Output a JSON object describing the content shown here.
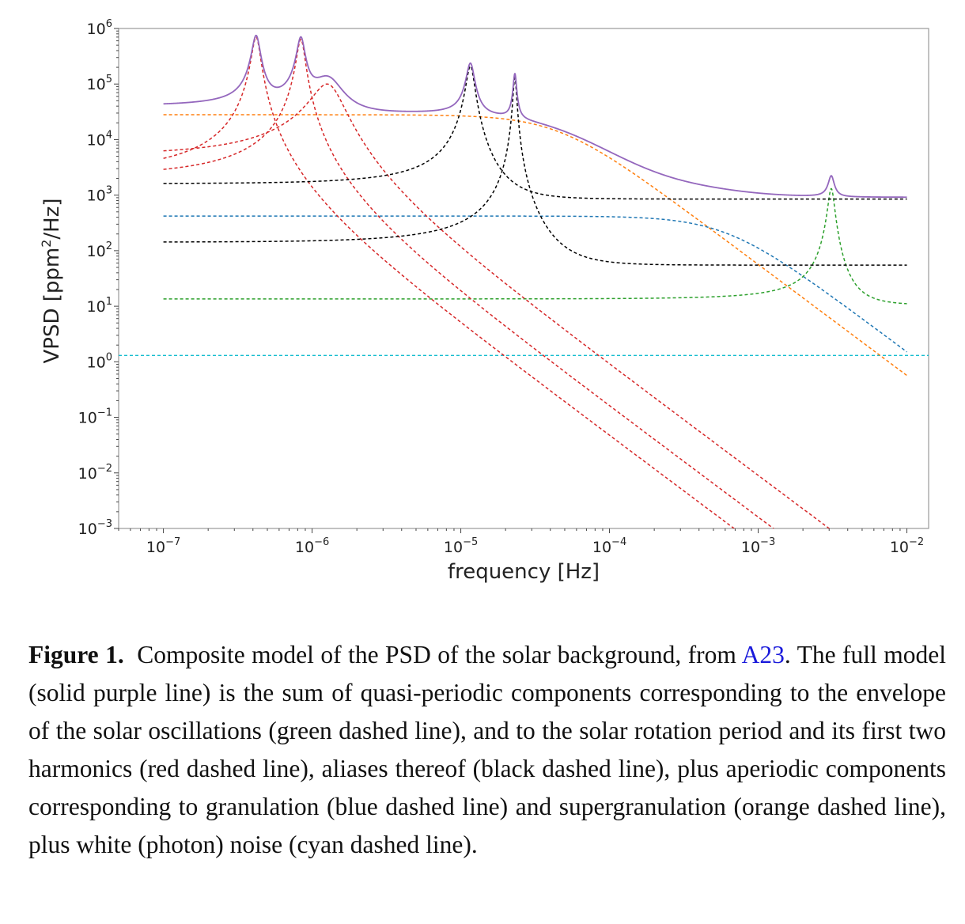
{
  "chart_data": {
    "type": "line",
    "xscale": "log",
    "yscale": "log",
    "xlabel": "frequency [Hz]",
    "ylabel_base": "VPSD [ppm",
    "ylabel_sup": "2",
    "ylabel_tail": "/Hz]",
    "xlim": [
      5e-08,
      0.014
    ],
    "ylim": [
      0.001,
      1000000.0
    ],
    "xticks": [
      {
        "value": 1e-07,
        "base": "10",
        "exp": "−7"
      },
      {
        "value": 1e-06,
        "base": "10",
        "exp": "−6"
      },
      {
        "value": 1e-05,
        "base": "10",
        "exp": "−5"
      },
      {
        "value": 0.0001,
        "base": "10",
        "exp": "−4"
      },
      {
        "value": 0.001,
        "base": "10",
        "exp": "−3"
      },
      {
        "value": 0.01,
        "base": "10",
        "exp": "−2"
      }
    ],
    "yticks": [
      {
        "value": 1000000.0,
        "base": "10",
        "exp": "6"
      },
      {
        "value": 100000.0,
        "base": "10",
        "exp": "5"
      },
      {
        "value": 10000.0,
        "base": "10",
        "exp": "4"
      },
      {
        "value": 1000.0,
        "base": "10",
        "exp": "3"
      },
      {
        "value": 100.0,
        "base": "10",
        "exp": "2"
      },
      {
        "value": 10.0,
        "base": "10",
        "exp": "1"
      },
      {
        "value": 1.0,
        "base": "10",
        "exp": "0"
      },
      {
        "value": 0.1,
        "base": "10",
        "exp": "−1"
      },
      {
        "value": 0.01,
        "base": "10",
        "exp": "−2"
      },
      {
        "value": 0.001,
        "base": "10",
        "exp": "−3"
      }
    ],
    "x_range": [
      1e-07,
      0.01
    ],
    "grid": false,
    "legend": "none",
    "components": [
      {
        "kind": "constant",
        "color": "#17becf",
        "dashed": true,
        "level": 1.3,
        "full_width": true
      },
      {
        "kind": "harvey",
        "color": "#ff7f0e",
        "dashed": true,
        "amplitude": 28000,
        "knee": 4.5e-05,
        "exponent": 2
      },
      {
        "kind": "harvey",
        "color": "#1f77b4",
        "dashed": true,
        "amplitude": 420,
        "knee": 0.0006,
        "exponent": 2
      },
      {
        "kind": "lorentz",
        "color": "#2ca02c",
        "dashed": true,
        "offset": 10.5,
        "height": 1300,
        "center": 0.0031,
        "width": 0.00015
      },
      {
        "kind": "lorentz",
        "color": "#d62728",
        "dashed": true,
        "height": 700000,
        "center": 4.2e-07,
        "width": 2.6e-08
      },
      {
        "kind": "lorentz",
        "color": "#d62728",
        "dashed": true,
        "height": 640000,
        "center": 8.4e-07,
        "width": 5e-08
      },
      {
        "kind": "lorentz",
        "color": "#d62728",
        "dashed": true,
        "height": 100000,
        "center": 1.26e-06,
        "width": 3e-07
      },
      {
        "kind": "lorentz",
        "color": "#000000",
        "dashed": true,
        "offset": 850,
        "height": 210000,
        "center": 1.16e-05,
        "width": 7e-07
      },
      {
        "kind": "lorentz",
        "color": "#000000",
        "dashed": true,
        "offset": 55,
        "height": 130000,
        "center": 2.31e-05,
        "width": 6e-07
      }
    ],
    "total": {
      "color": "#9467bd",
      "dashed": false,
      "label": "full model"
    }
  },
  "caption": {
    "label": "Figure 1.",
    "text_before_ref": "Composite model of the PSD of the solar background, from ",
    "ref": "A23",
    "text_after_ref": ". The full model (solid purple line) is the sum of quasi-periodic components corresponding to the envelope of the solar oscillations (green dashed line), and to the solar rotation period and its first two harmonics (red dashed line), aliases thereof (black dashed line), plus aperiodic components corresponding to granulation (blue dashed line) and supergranulation (orange dashed line), plus white (photon) noise (cyan dashed line)."
  }
}
